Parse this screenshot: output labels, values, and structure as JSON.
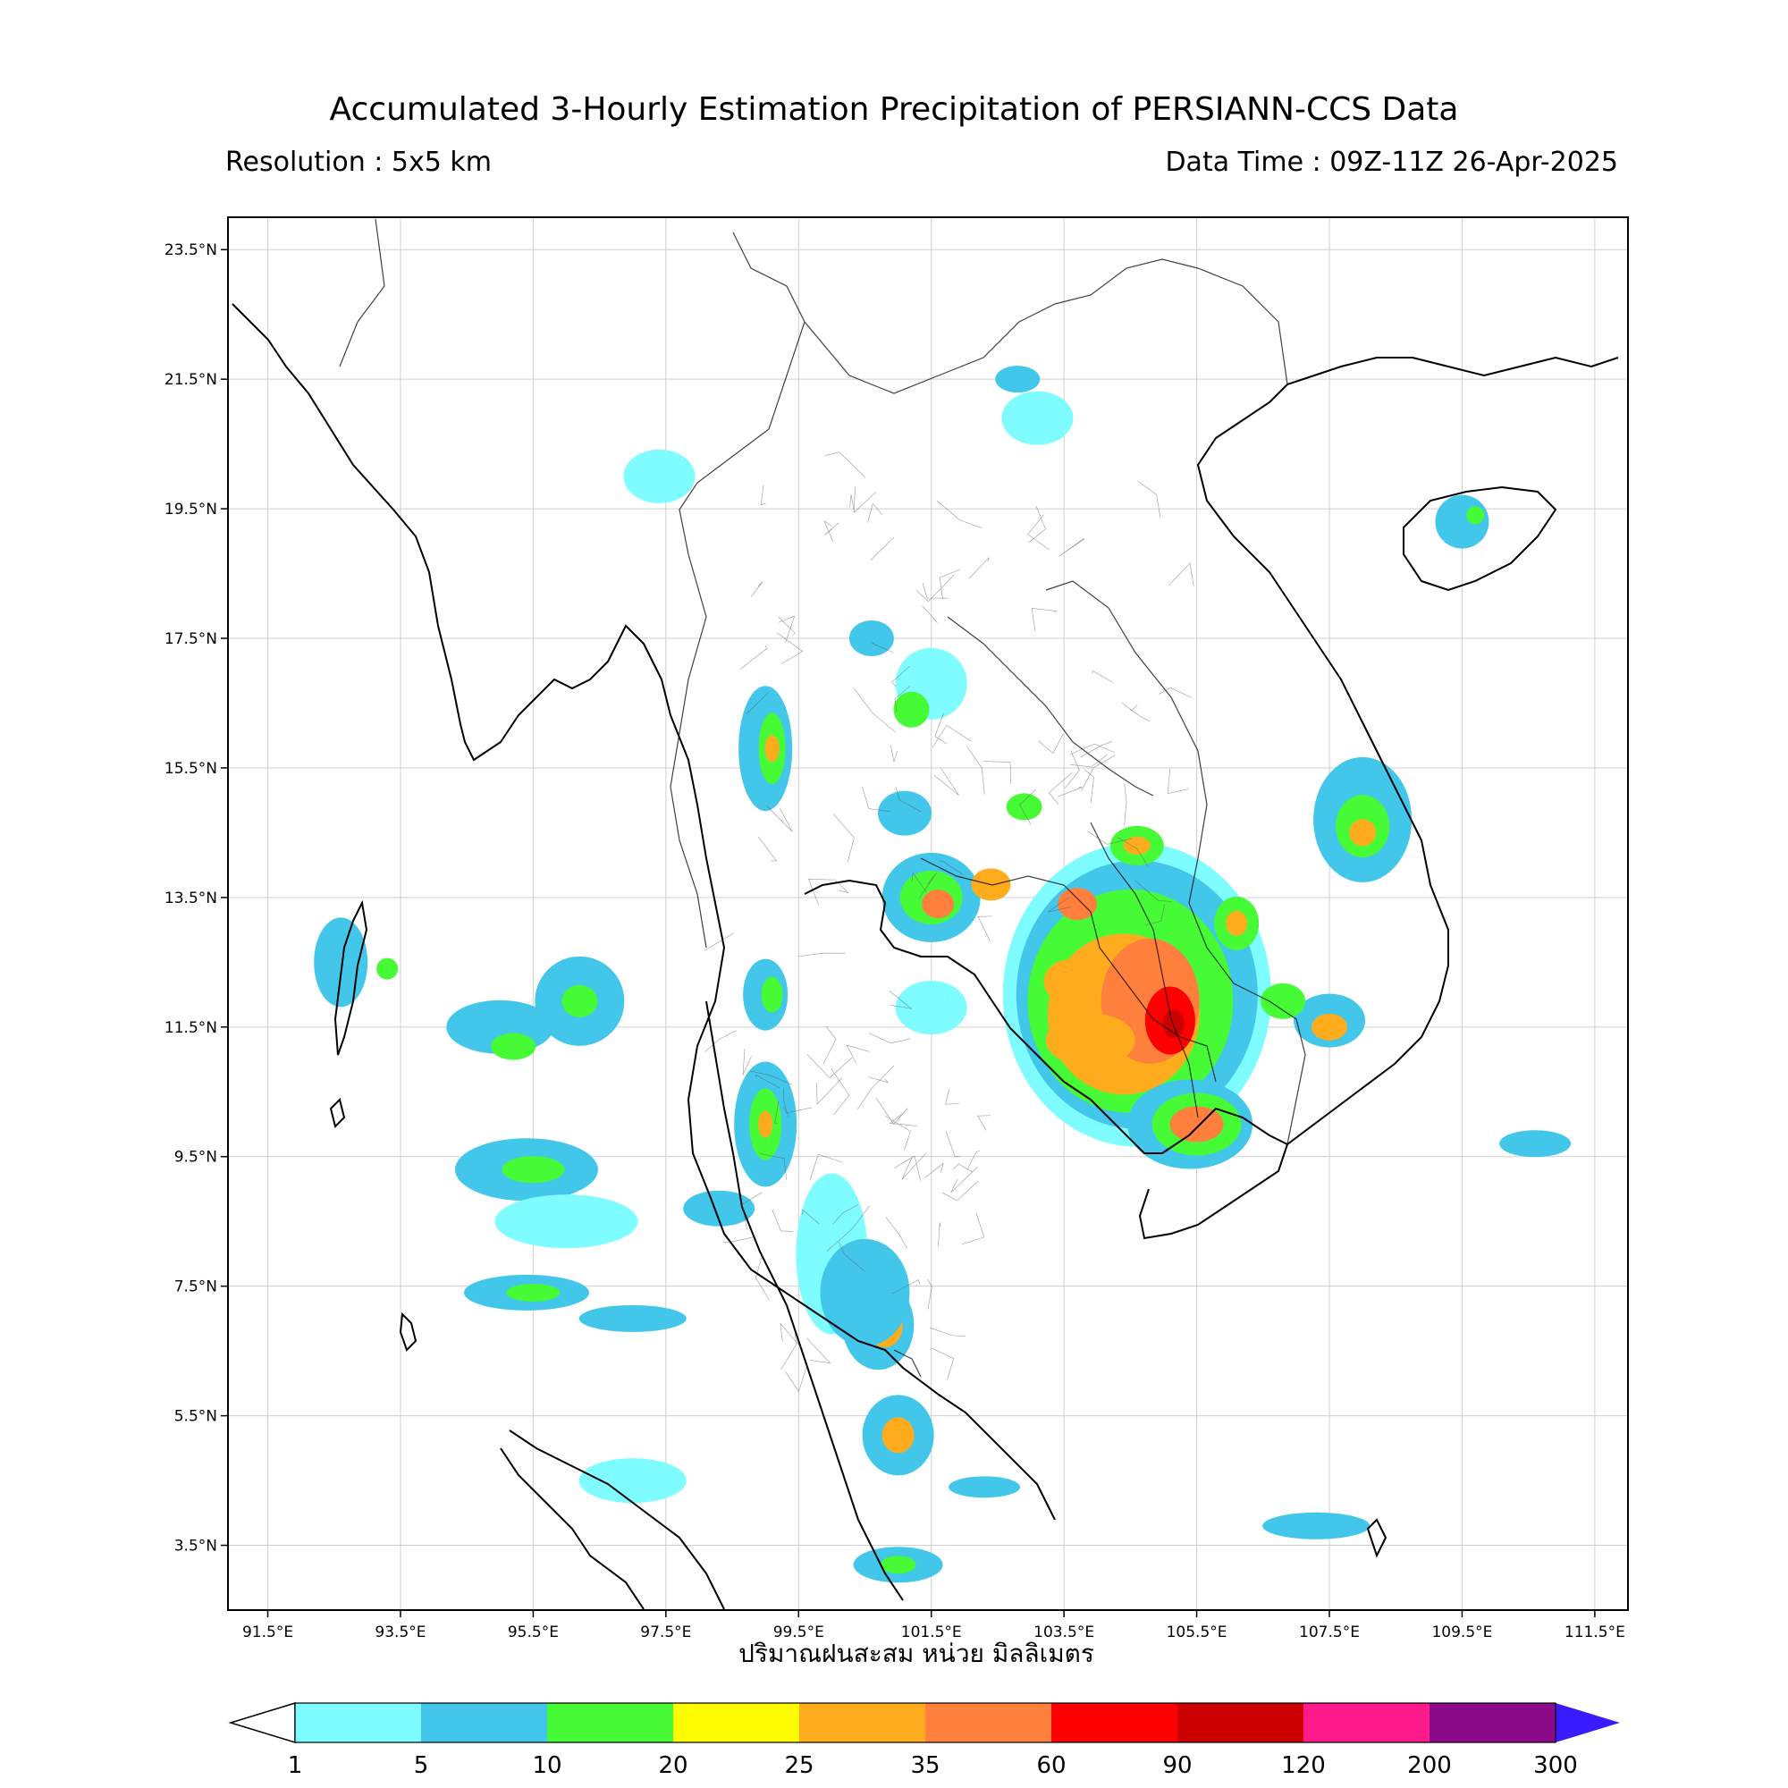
{
  "header": {
    "title": "Accumulated 3-Hourly Estimation Precipitation of PERSIANN-CCS Data",
    "resolution": "Resolution : 5x5 km",
    "data_time": "Data Time : 09Z-11Z 26-Apr-2025"
  },
  "axes": {
    "lat_ticks": [
      "23.5°N",
      "21.5°N",
      "19.5°N",
      "17.5°N",
      "15.5°N",
      "13.5°N",
      "11.5°N",
      "9.5°N",
      "7.5°N",
      "5.5°N",
      "3.5°N"
    ],
    "lon_ticks": [
      "91.5°E",
      "93.5°E",
      "95.5°E",
      "97.5°E",
      "99.5°E",
      "101.5°E",
      "103.5°E",
      "105.5°E",
      "107.5°E",
      "109.5°E",
      "111.5°E"
    ],
    "xlabel": "ปริมาณฝนสะสม หน่วย มิลลิเมตร"
  },
  "legend": {
    "levels": [
      "1",
      "5",
      "10",
      "20",
      "25",
      "35",
      "60",
      "90",
      "120",
      "200",
      "300"
    ],
    "colors": [
      "#7ffcff",
      "#42c6ea",
      "#46fb35",
      "#fffb00",
      "#ffab1e",
      "#ff7f3c",
      "#ff0000",
      "#cc0000",
      "#ff1a8c",
      "#8a0a8a",
      "#3a1bff"
    ]
  },
  "map": {
    "extent": {
      "lon_min": 90.9,
      "lon_max": 112.0,
      "lat_min": 2.5,
      "lat_max": 24.0
    },
    "colors": {
      "rain1": "#7ffcff",
      "rain5": "#42c6ea",
      "rain10": "#46fb35",
      "rain20": "#fffb00",
      "rain25": "#ffab1e",
      "rain35": "#ff7f3c",
      "rain60": "#ff0000",
      "rain90": "#cc0000"
    }
  }
}
